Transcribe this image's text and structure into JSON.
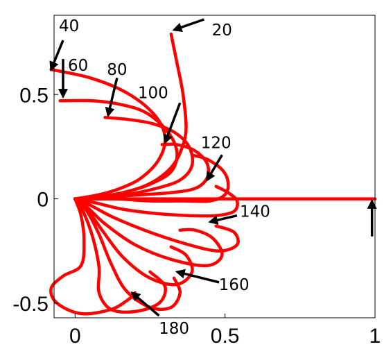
{
  "chart_data": {
    "type": "line",
    "title": "",
    "xlabel": "",
    "ylabel": "",
    "xlim": [
      -0.07,
      1.0
    ],
    "ylim": [
      -0.57,
      0.88
    ],
    "x_ticks": [
      {
        "value": 0,
        "label": "0"
      },
      {
        "value": 0.5,
        "label": "0.5"
      },
      {
        "value": 1,
        "label": "1"
      }
    ],
    "y_ticks": [
      {
        "value": 0.5,
        "label": "0.5"
      },
      {
        "value": 0,
        "label": "0"
      },
      {
        "value": -0.5,
        "label": "-0.5"
      }
    ],
    "grid": false,
    "line_color": "#ff0000",
    "arrow_color": "#000000",
    "series": [
      {
        "x": [
          0.32,
          0.34,
          0.36,
          0.37,
          0.35,
          0.32,
          0.27,
          0.21,
          0.13,
          0.05,
          0.0
        ],
        "y": [
          0.79,
          0.65,
          0.5,
          0.33,
          0.22,
          0.15,
          0.09,
          0.05,
          0.02,
          0.0,
          0.0
        ]
      },
      {
        "x": [
          -0.08,
          0.05,
          0.17,
          0.26,
          0.3,
          0.28,
          0.22,
          0.15,
          0.08,
          0.0
        ],
        "y": [
          0.62,
          0.58,
          0.51,
          0.41,
          0.3,
          0.19,
          0.1,
          0.05,
          0.02,
          0.0
        ]
      },
      {
        "x": [
          -0.05,
          0.06,
          0.16,
          0.24,
          0.31,
          0.34,
          0.32,
          0.25,
          0.16,
          0.08,
          0.0
        ],
        "y": [
          0.47,
          0.47,
          0.45,
          0.41,
          0.32,
          0.22,
          0.13,
          0.07,
          0.03,
          0.01,
          0.0
        ]
      },
      {
        "x": [
          0.1,
          0.18,
          0.26,
          0.33,
          0.38,
          0.39,
          0.35,
          0.27,
          0.17,
          0.08,
          0.0
        ],
        "y": [
          0.39,
          0.38,
          0.36,
          0.32,
          0.25,
          0.16,
          0.09,
          0.05,
          0.02,
          0.01,
          0.0
        ]
      },
      {
        "x": [
          0.29,
          0.34,
          0.4,
          0.44,
          0.44,
          0.4,
          0.32,
          0.22,
          0.12,
          0.05,
          0.0
        ],
        "y": [
          0.26,
          0.26,
          0.23,
          0.17,
          0.1,
          0.05,
          0.03,
          0.02,
          0.01,
          0.0,
          0.0
        ]
      },
      {
        "x": [
          0.39,
          0.44,
          0.49,
          0.51,
          0.5,
          0.45,
          0.36,
          0.25,
          0.14,
          0.06,
          0.0
        ],
        "y": [
          0.21,
          0.19,
          0.14,
          0.08,
          0.02,
          -0.01,
          -0.01,
          -0.01,
          0.0,
          0.0,
          0.0
        ]
      },
      {
        "x": [
          0.0,
          0.2,
          0.4,
          0.6,
          0.8,
          1.0
        ],
        "y": [
          0.0,
          0.0,
          0.0,
          0.0,
          0.0,
          0.0
        ]
      },
      {
        "x": [
          0.0,
          0.07,
          0.16,
          0.27,
          0.38,
          0.47,
          0.53,
          0.54,
          0.51,
          0.47
        ],
        "y": [
          0.0,
          -0.02,
          -0.05,
          -0.07,
          -0.08,
          -0.08,
          -0.06,
          -0.01,
          0.03,
          0.06
        ]
      },
      {
        "x": [
          0.0,
          0.05,
          0.13,
          0.25,
          0.38,
          0.48,
          0.54,
          0.53,
          0.47
        ],
        "y": [
          0.0,
          -0.03,
          -0.09,
          -0.16,
          -0.22,
          -0.25,
          -0.22,
          -0.16,
          -0.13
        ]
      },
      {
        "x": [
          0.0,
          0.04,
          0.1,
          0.2,
          0.32,
          0.44,
          0.49,
          0.46,
          0.4,
          0.35
        ],
        "y": [
          0.0,
          -0.04,
          -0.12,
          -0.22,
          -0.29,
          -0.32,
          -0.27,
          -0.19,
          -0.15,
          -0.15
        ]
      },
      {
        "x": [
          0.0,
          0.04,
          0.09,
          0.16,
          0.25,
          0.34,
          0.39,
          0.37,
          0.32
        ],
        "y": [
          0.0,
          -0.05,
          -0.15,
          -0.28,
          -0.38,
          -0.41,
          -0.35,
          -0.27,
          -0.23
        ]
      },
      {
        "x": [
          0.0,
          0.04,
          0.08,
          0.12,
          0.17,
          0.25,
          0.32,
          0.35,
          0.33
        ],
        "y": [
          0.0,
          -0.06,
          -0.17,
          -0.31,
          -0.44,
          -0.52,
          -0.52,
          -0.45,
          -0.38
        ]
      },
      {
        "x": [
          0.0,
          0.03,
          0.06,
          0.08,
          0.08,
          0.12,
          0.2,
          0.28,
          0.3,
          0.25
        ],
        "y": [
          0.0,
          -0.07,
          -0.19,
          -0.33,
          -0.45,
          -0.53,
          -0.54,
          -0.5,
          -0.42,
          -0.35
        ]
      },
      {
        "x": [
          0.0,
          0.02,
          0.03,
          0.02,
          -0.04,
          -0.08,
          -0.06,
          0.02,
          0.12,
          0.18,
          0.2
        ],
        "y": [
          0.0,
          -0.08,
          -0.2,
          -0.32,
          -0.37,
          -0.43,
          -0.5,
          -0.55,
          -0.53,
          -0.48,
          -0.45
        ]
      }
    ],
    "annotations": [
      {
        "text": "20",
        "x": 0.49,
        "y": 0.81,
        "tip_x": 0.33,
        "tip_y": 0.81,
        "tail_x": 0.43,
        "tail_y": 0.86
      },
      {
        "text": "40",
        "x": -0.02,
        "y": 0.83,
        "tip_x": -0.08,
        "tip_y": 0.62,
        "tail_x": -0.04,
        "tail_y": 0.76
      },
      {
        "text": "60",
        "x": 0.01,
        "y": 0.64,
        "tip_x": -0.04,
        "tip_y": 0.49,
        "tail_x": -0.04,
        "tail_y": 0.67
      },
      {
        "text": "80",
        "x": 0.14,
        "y": 0.62,
        "tip_x": 0.11,
        "tip_y": 0.4,
        "tail_x": 0.14,
        "tail_y": 0.58
      },
      {
        "text": "100",
        "x": 0.26,
        "y": 0.51,
        "tip_x": 0.3,
        "tip_y": 0.27,
        "tail_x": 0.35,
        "tail_y": 0.46
      },
      {
        "text": "120",
        "x": 0.47,
        "y": 0.27,
        "tip_x": 0.44,
        "tip_y": 0.09,
        "tail_x": 0.49,
        "tail_y": 0.21
      },
      {
        "text": "140",
        "x": 0.6,
        "y": -0.06,
        "tip_x": 0.45,
        "tip_y": -0.11,
        "tail_x": 0.54,
        "tail_y": -0.08
      },
      {
        "text": "160",
        "x": 0.53,
        "y": -0.41,
        "tip_x": 0.34,
        "tip_y": -0.35,
        "tail_x": 0.48,
        "tail_y": -0.4
      },
      {
        "text": "180",
        "x": 0.33,
        "y": -0.62,
        "tip_x": 0.19,
        "tip_y": -0.45,
        "tail_x": 0.28,
        "tail_y": -0.56
      },
      {
        "text": "",
        "x": 0.99,
        "y": -0.15,
        "tip_x": 0.99,
        "tip_y": -0.01,
        "tail_x": 0.99,
        "tail_y": -0.18
      }
    ]
  }
}
